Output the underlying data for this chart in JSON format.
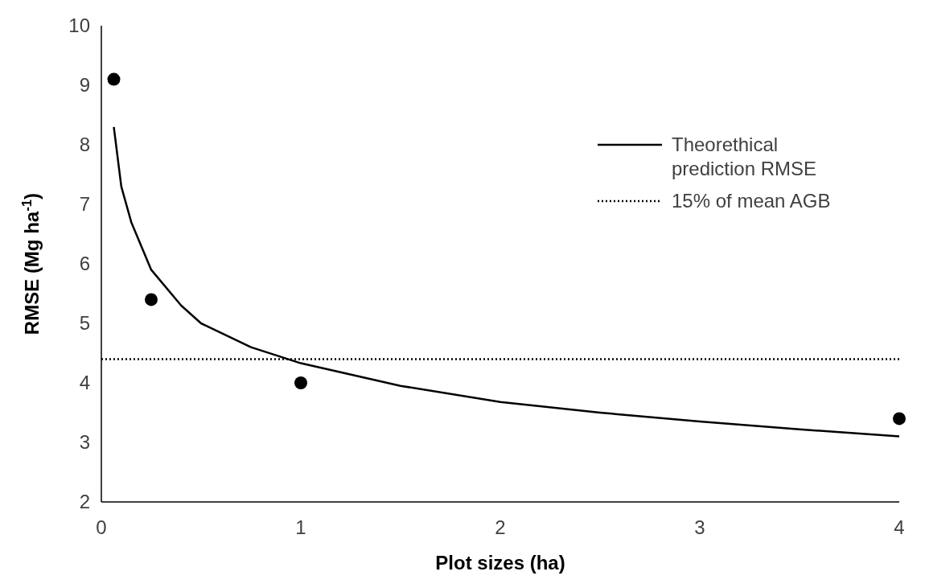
{
  "chart_data": {
    "type": "scatter",
    "xlabel": "Plot sizes (ha)",
    "ylabel": "RMSE  (Mg ha$^{-1}$)",
    "xlim": [
      0,
      4
    ],
    "xticks": [
      0,
      1,
      2,
      3,
      4
    ],
    "ylim": [
      2,
      10
    ],
    "yticks": [
      2,
      3,
      4,
      5,
      6,
      7,
      8,
      9,
      10
    ],
    "grid": false,
    "legend": "top right",
    "series": [
      {
        "color": "#000000",
        "marker": "circle",
        "x": [
          0.0625,
          0.25,
          1,
          4
        ],
        "values": [
          9.1,
          5.4,
          4.0,
          3.4
        ]
      },
      {
        "type": "line",
        "name": "Theorethical prediction RMSE",
        "color": "#000000",
        "line_style": "solid",
        "x": [
          0.0625,
          0.1,
          0.15,
          0.25,
          0.4,
          0.5,
          0.75,
          1,
          1.5,
          2,
          2.5,
          3,
          3.5,
          4
        ],
        "values": [
          8.3,
          7.3,
          6.7,
          5.9,
          5.3,
          5.0,
          4.6,
          4.33,
          3.95,
          3.68,
          3.5,
          3.35,
          3.22,
          3.1
        ]
      },
      {
        "type": "line",
        "name": "15% of mean AGB",
        "color": "#000000",
        "line_style": "dotted",
        "x": [
          0,
          4
        ],
        "values": [
          4.4,
          4.4
        ]
      }
    ]
  }
}
